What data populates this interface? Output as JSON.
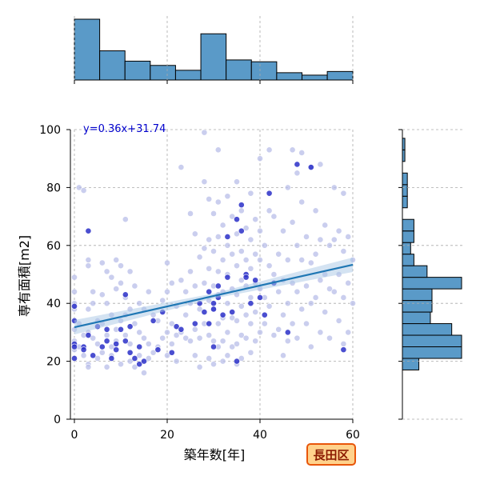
{
  "chart_data": {
    "type": "scatter",
    "xlabel": "築年数[年]",
    "ylabel": "専有面積[m2]",
    "xlim": [
      0,
      60
    ],
    "ylim": [
      0,
      100
    ],
    "xticks": [
      0,
      20,
      40,
      60
    ],
    "yticks": [
      0,
      20,
      40,
      60,
      80,
      100
    ],
    "grid": true,
    "regression": {
      "label": "y=0.36x+31.74",
      "slope": 0.36,
      "intercept": 31.74,
      "ci_halfwidth_at_ends": 2.5
    },
    "badge": "長田区",
    "colors": {
      "point_light": "#b8bde8",
      "point_dark": "#2a2fc8",
      "regression_line": "#1f77b4",
      "ci_band": "#aac8e6",
      "hist_fill": "#5a9ac8",
      "hist_edge": "#000000",
      "badge_fill": "#ffd28c",
      "badge_edge": "#e8560a",
      "equation": "#0000cc"
    },
    "points_light": [
      [
        0,
        40
      ],
      [
        0,
        38
      ],
      [
        0,
        31
      ],
      [
        0,
        27
      ],
      [
        0,
        24
      ],
      [
        0,
        44
      ],
      [
        0,
        49
      ],
      [
        1,
        25
      ],
      [
        1,
        33
      ],
      [
        1,
        80
      ],
      [
        2,
        79
      ],
      [
        2,
        22
      ],
      [
        2,
        29
      ],
      [
        3,
        55
      ],
      [
        3,
        53
      ],
      [
        3,
        38
      ],
      [
        3,
        30
      ],
      [
        3,
        19
      ],
      [
        3,
        18
      ],
      [
        4,
        44
      ],
      [
        4,
        40
      ],
      [
        4,
        28
      ],
      [
        5,
        34
      ],
      [
        5,
        26
      ],
      [
        5,
        21
      ],
      [
        6,
        54
      ],
      [
        6,
        43
      ],
      [
        6,
        33
      ],
      [
        6,
        23
      ],
      [
        7,
        51
      ],
      [
        7,
        40
      ],
      [
        7,
        29
      ],
      [
        7,
        18
      ],
      [
        8,
        49
      ],
      [
        8,
        36
      ],
      [
        8,
        25
      ],
      [
        8,
        22
      ],
      [
        9,
        55
      ],
      [
        9,
        45
      ],
      [
        9,
        31
      ],
      [
        9,
        27
      ],
      [
        10,
        53
      ],
      [
        10,
        47
      ],
      [
        10,
        34
      ],
      [
        10,
        19
      ],
      [
        11,
        42
      ],
      [
        11,
        36
      ],
      [
        11,
        29
      ],
      [
        11,
        69
      ],
      [
        12,
        51
      ],
      [
        12,
        38
      ],
      [
        12,
        26
      ],
      [
        12,
        20
      ],
      [
        13,
        46
      ],
      [
        13,
        33
      ],
      [
        13,
        18
      ],
      [
        14,
        40
      ],
      [
        14,
        30
      ],
      [
        14,
        22
      ],
      [
        15,
        38
      ],
      [
        15,
        28
      ],
      [
        15,
        16
      ],
      [
        16,
        44
      ],
      [
        16,
        26
      ],
      [
        16,
        21
      ],
      [
        17,
        36
      ],
      [
        17,
        23
      ],
      [
        18,
        34
      ],
      [
        18,
        25
      ],
      [
        19,
        41
      ],
      [
        19,
        28
      ],
      [
        20,
        54
      ],
      [
        20,
        44
      ],
      [
        20,
        30
      ],
      [
        20,
        22
      ],
      [
        21,
        47
      ],
      [
        21,
        33
      ],
      [
        21,
        26
      ],
      [
        22,
        39
      ],
      [
        22,
        29
      ],
      [
        22,
        20
      ],
      [
        23,
        87
      ],
      [
        23,
        48
      ],
      [
        23,
        30
      ],
      [
        24,
        44
      ],
      [
        24,
        36
      ],
      [
        24,
        28
      ],
      [
        25,
        71
      ],
      [
        25,
        51
      ],
      [
        25,
        40
      ],
      [
        25,
        27
      ],
      [
        26,
        64
      ],
      [
        26,
        46
      ],
      [
        26,
        31
      ],
      [
        26,
        22
      ],
      [
        27,
        56
      ],
      [
        27,
        38
      ],
      [
        27,
        28
      ],
      [
        27,
        18
      ],
      [
        28,
        99
      ],
      [
        28,
        82
      ],
      [
        28,
        59
      ],
      [
        28,
        47
      ],
      [
        28,
        33
      ],
      [
        29,
        76
      ],
      [
        29,
        62
      ],
      [
        29,
        52
      ],
      [
        29,
        41
      ],
      [
        29,
        29
      ],
      [
        29,
        21
      ],
      [
        30,
        71
      ],
      [
        30,
        58
      ],
      [
        30,
        46
      ],
      [
        30,
        38
      ],
      [
        30,
        27
      ],
      [
        30,
        19
      ],
      [
        31,
        93
      ],
      [
        31,
        75
      ],
      [
        31,
        63
      ],
      [
        31,
        51
      ],
      [
        31,
        43
      ],
      [
        31,
        33
      ],
      [
        31,
        25
      ],
      [
        32,
        67
      ],
      [
        32,
        55
      ],
      [
        32,
        44
      ],
      [
        32,
        35
      ],
      [
        32,
        27
      ],
      [
        32,
        20
      ],
      [
        33,
        77
      ],
      [
        33,
        60
      ],
      [
        33,
        50
      ],
      [
        33,
        40
      ],
      [
        33,
        30
      ],
      [
        33,
        22
      ],
      [
        34,
        70
      ],
      [
        34,
        57
      ],
      [
        34,
        45
      ],
      [
        34,
        35
      ],
      [
        34,
        25
      ],
      [
        35,
        82
      ],
      [
        35,
        64
      ],
      [
        35,
        53
      ],
      [
        35,
        43
      ],
      [
        35,
        34
      ],
      [
        35,
        26
      ],
      [
        35,
        19
      ],
      [
        36,
        72
      ],
      [
        36,
        58
      ],
      [
        36,
        48
      ],
      [
        36,
        39
      ],
      [
        36,
        29
      ],
      [
        36,
        21
      ],
      [
        37,
        66
      ],
      [
        37,
        55
      ],
      [
        37,
        46
      ],
      [
        37,
        36
      ],
      [
        37,
        28
      ],
      [
        38,
        78
      ],
      [
        38,
        62
      ],
      [
        38,
        52
      ],
      [
        38,
        42
      ],
      [
        38,
        33
      ],
      [
        38,
        23
      ],
      [
        39,
        69
      ],
      [
        39,
        57
      ],
      [
        39,
        47
      ],
      [
        39,
        37
      ],
      [
        39,
        27
      ],
      [
        40,
        90
      ],
      [
        40,
        65
      ],
      [
        40,
        55
      ],
      [
        40,
        45
      ],
      [
        40,
        30
      ],
      [
        41,
        60
      ],
      [
        41,
        42
      ],
      [
        41,
        33
      ],
      [
        42,
        93
      ],
      [
        42,
        72
      ],
      [
        42,
        53
      ],
      [
        42,
        39
      ],
      [
        43,
        70
      ],
      [
        43,
        50
      ],
      [
        43,
        29
      ],
      [
        44,
        57
      ],
      [
        44,
        44
      ],
      [
        44,
        31
      ],
      [
        45,
        65
      ],
      [
        45,
        48
      ],
      [
        45,
        36
      ],
      [
        45,
        22
      ],
      [
        46,
        80
      ],
      [
        46,
        55
      ],
      [
        46,
        40
      ],
      [
        46,
        27
      ],
      [
        47,
        93
      ],
      [
        47,
        68
      ],
      [
        47,
        47
      ],
      [
        47,
        33
      ],
      [
        48,
        85
      ],
      [
        48,
        60
      ],
      [
        48,
        44
      ],
      [
        48,
        28
      ],
      [
        49,
        92
      ],
      [
        49,
        75
      ],
      [
        49,
        55
      ],
      [
        49,
        38
      ],
      [
        50,
        63
      ],
      [
        50,
        46
      ],
      [
        50,
        33
      ],
      [
        51,
        87
      ],
      [
        51,
        54
      ],
      [
        51,
        40
      ],
      [
        51,
        25
      ],
      [
        52,
        72
      ],
      [
        52,
        57
      ],
      [
        52,
        42
      ],
      [
        53,
        88
      ],
      [
        53,
        62
      ],
      [
        53,
        48
      ],
      [
        53,
        30
      ],
      [
        54,
        67
      ],
      [
        54,
        50
      ],
      [
        54,
        37
      ],
      [
        55,
        60
      ],
      [
        55,
        45
      ],
      [
        55,
        28
      ],
      [
        56,
        80
      ],
      [
        56,
        62
      ],
      [
        56,
        44
      ],
      [
        57,
        65
      ],
      [
        57,
        50
      ],
      [
        57,
        34
      ],
      [
        58,
        78
      ],
      [
        58,
        58
      ],
      [
        58,
        42
      ],
      [
        58,
        26
      ],
      [
        59,
        63
      ],
      [
        59,
        47
      ],
      [
        59,
        30
      ],
      [
        60,
        55
      ],
      [
        60,
        40
      ]
    ],
    "points_dark": [
      [
        0,
        39
      ],
      [
        0,
        34
      ],
      [
        0,
        26
      ],
      [
        0,
        25
      ],
      [
        0,
        21
      ],
      [
        2,
        25
      ],
      [
        2,
        24
      ],
      [
        3,
        29
      ],
      [
        3,
        65
      ],
      [
        4,
        22
      ],
      [
        5,
        32
      ],
      [
        6,
        25
      ],
      [
        7,
        27
      ],
      [
        7,
        31
      ],
      [
        8,
        21
      ],
      [
        9,
        24
      ],
      [
        9,
        26
      ],
      [
        10,
        31
      ],
      [
        11,
        27
      ],
      [
        11,
        43
      ],
      [
        12,
        23
      ],
      [
        12,
        32
      ],
      [
        13,
        21
      ],
      [
        14,
        19
      ],
      [
        14,
        25
      ],
      [
        15,
        20
      ],
      [
        17,
        34
      ],
      [
        18,
        24
      ],
      [
        19,
        37
      ],
      [
        21,
        23
      ],
      [
        22,
        32
      ],
      [
        23,
        31
      ],
      [
        26,
        33
      ],
      [
        27,
        40
      ],
      [
        28,
        37
      ],
      [
        29,
        33
      ],
      [
        29,
        44
      ],
      [
        30,
        25
      ],
      [
        30,
        38
      ],
      [
        30,
        40
      ],
      [
        31,
        42
      ],
      [
        31,
        46
      ],
      [
        32,
        36
      ],
      [
        33,
        63
      ],
      [
        33,
        49
      ],
      [
        34,
        37
      ],
      [
        35,
        69
      ],
      [
        35,
        20
      ],
      [
        36,
        74
      ],
      [
        36,
        65
      ],
      [
        37,
        50
      ],
      [
        37,
        49
      ],
      [
        38,
        40
      ],
      [
        39,
        48
      ],
      [
        40,
        42
      ],
      [
        41,
        36
      ],
      [
        42,
        78
      ],
      [
        43,
        47
      ],
      [
        46,
        30
      ],
      [
        48,
        88
      ],
      [
        51,
        87
      ],
      [
        58,
        24
      ]
    ],
    "hist_x": {
      "edges": [
        0,
        5.45,
        10.9,
        16.35,
        21.8,
        27.25,
        32.7,
        38.15,
        43.6,
        49.05,
        54.5,
        60
      ],
      "counts": [
        100,
        48,
        31,
        24,
        16,
        76,
        33,
        30,
        12,
        8,
        14
      ]
    },
    "hist_y": {
      "bins": [
        {
          "range": [
            17,
            21
          ],
          "count": 20
        },
        {
          "range": [
            21,
            25
          ],
          "count": 72
        },
        {
          "range": [
            25,
            29
          ],
          "count": 72
        },
        {
          "range": [
            29,
            33
          ],
          "count": 60
        },
        {
          "range": [
            33,
            37
          ],
          "count": 34
        },
        {
          "range": [
            37,
            41
          ],
          "count": 36
        },
        {
          "range": [
            41,
            45
          ],
          "count": 36
        },
        {
          "range": [
            45,
            49
          ],
          "count": 72
        },
        {
          "range": [
            49,
            53
          ],
          "count": 30
        },
        {
          "range": [
            53,
            57
          ],
          "count": 14
        },
        {
          "range": [
            57,
            61
          ],
          "count": 10
        },
        {
          "range": [
            61,
            65
          ],
          "count": 14
        },
        {
          "range": [
            65,
            69
          ],
          "count": 14
        },
        {
          "range": [
            73,
            77
          ],
          "count": 6
        },
        {
          "range": [
            77,
            81
          ],
          "count": 6
        },
        {
          "range": [
            81,
            85
          ],
          "count": 6
        },
        {
          "range": [
            89,
            93
          ],
          "count": 3
        },
        {
          "range": [
            93,
            97
          ],
          "count": 3
        }
      ]
    }
  }
}
